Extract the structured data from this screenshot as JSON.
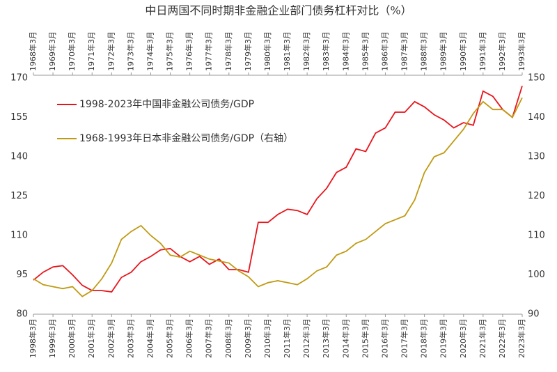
{
  "chart_data": {
    "type": "line",
    "title": "中日两国不同时期非金融企业部门债务杠杆对比（%）",
    "x": [
      1998,
      1998.5,
      1999,
      1999.5,
      2000,
      2000.5,
      2001,
      2001.5,
      2002,
      2002.5,
      2003,
      2003.5,
      2004,
      2004.5,
      2005,
      2005.5,
      2006,
      2006.5,
      2007,
      2007.5,
      2008,
      2008.5,
      2009,
      2009.5,
      2010,
      2010.5,
      2011,
      2011.5,
      2012,
      2012.5,
      2013,
      2013.5,
      2014,
      2014.5,
      2015,
      2015.5,
      2016,
      2016.5,
      2017,
      2017.5,
      2018,
      2018.5,
      2019,
      2019.5,
      2020,
      2020.5,
      2021,
      2021.5,
      2022,
      2022.5,
      2023
    ],
    "series": [
      {
        "name": "1998-2023年中国非金融公司债务/GDP",
        "color": "#e8141b",
        "values": [
          93,
          96,
          98,
          98.5,
          95,
          91,
          89,
          89,
          88.5,
          94,
          96,
          100,
          102,
          104.5,
          105,
          102,
          100,
          102,
          99,
          101,
          97,
          97,
          96,
          115,
          115,
          118,
          120,
          119.5,
          118,
          124,
          128,
          134,
          136,
          143,
          142,
          149,
          151,
          157,
          157,
          161,
          159,
          156,
          154,
          151,
          153,
          152,
          165,
          163,
          158,
          155,
          167
        ]
      },
      {
        "name": "1968-1993年日本非金融公司债务/GDP（右轴）",
        "color": "#c09a12",
        "axis": "y2",
        "values": [
          99,
          97.5,
          97,
          96.5,
          97,
          94.5,
          96,
          99,
          103,
          109,
          111,
          112.5,
          110,
          108,
          105,
          104.5,
          106,
          105,
          104,
          103.5,
          103,
          101,
          99.5,
          97,
          98,
          98.5,
          98,
          97.5,
          99,
          101,
          102,
          105,
          106,
          108,
          109,
          111,
          113,
          114,
          115,
          119,
          126,
          130,
          131,
          134,
          137,
          141,
          144,
          142,
          142,
          140,
          145
        ]
      }
    ],
    "xlim": [
      1998,
      2023
    ],
    "xticks": [
      {
        "value": 1998,
        "label": "1998年3月"
      },
      {
        "value": 1999,
        "label": "1999年3月"
      },
      {
        "value": 2000,
        "label": "2000年3月"
      },
      {
        "value": 2001,
        "label": "2001年3月"
      },
      {
        "value": 2002,
        "label": "2002年3月"
      },
      {
        "value": 2003,
        "label": "2003年3月"
      },
      {
        "value": 2004,
        "label": "2004年3月"
      },
      {
        "value": 2005,
        "label": "2005年3月"
      },
      {
        "value": 2006,
        "label": "2006年3月"
      },
      {
        "value": 2007,
        "label": "2007年3月"
      },
      {
        "value": 2008,
        "label": "2008年3月"
      },
      {
        "value": 2009,
        "label": "2009年3月"
      },
      {
        "value": 2010,
        "label": "2010年3月"
      },
      {
        "value": 2011,
        "label": "2011年3月"
      },
      {
        "value": 2012,
        "label": "2012年3月"
      },
      {
        "value": 2013,
        "label": "2013年3月"
      },
      {
        "value": 2014,
        "label": "2014年3月"
      },
      {
        "value": 2015,
        "label": "2015年3月"
      },
      {
        "value": 2016,
        "label": "2016年3月"
      },
      {
        "value": 2017,
        "label": "2017年3月"
      },
      {
        "value": 2018,
        "label": "2018年3月"
      },
      {
        "value": 2019,
        "label": "2019年3月"
      },
      {
        "value": 2020,
        "label": "2020年3月"
      },
      {
        "value": 2021,
        "label": "2021年3月"
      },
      {
        "value": 2022,
        "label": "2022年3月"
      },
      {
        "value": 2023,
        "label": "2023年3月"
      }
    ],
    "x2ticks": [
      {
        "value": 1998,
        "label": "1968年3月"
      },
      {
        "value": 1999,
        "label": "1969年3月"
      },
      {
        "value": 2000,
        "label": "1970年3月"
      },
      {
        "value": 2001,
        "label": "1971年3月"
      },
      {
        "value": 2002,
        "label": "1972年3月"
      },
      {
        "value": 2003,
        "label": "1973年3月"
      },
      {
        "value": 2004,
        "label": "1974年3月"
      },
      {
        "value": 2005,
        "label": "1975年3月"
      },
      {
        "value": 2006,
        "label": "1976年3月"
      },
      {
        "value": 2007,
        "label": "1977年3月"
      },
      {
        "value": 2008,
        "label": "1978年3月"
      },
      {
        "value": 2009,
        "label": "1979年3月"
      },
      {
        "value": 2010,
        "label": "1980年3月"
      },
      {
        "value": 2011,
        "label": "1981年3月"
      },
      {
        "value": 2012,
        "label": "1982年3月"
      },
      {
        "value": 2013,
        "label": "1983年3月"
      },
      {
        "value": 2014,
        "label": "1984年3月"
      },
      {
        "value": 2015,
        "label": "1985年3月"
      },
      {
        "value": 2016,
        "label": "1986年3月"
      },
      {
        "value": 2017,
        "label": "1987年3月"
      },
      {
        "value": 2018,
        "label": "1988年3月"
      },
      {
        "value": 2019,
        "label": "1989年3月"
      },
      {
        "value": 2020,
        "label": "1990年3月"
      },
      {
        "value": 2021,
        "label": "1991年3月"
      },
      {
        "value": 2022,
        "label": "1992年3月"
      },
      {
        "value": 2023,
        "label": "1993年3月"
      }
    ],
    "ylim": [
      80,
      170
    ],
    "yticks": [
      80,
      95,
      110,
      125,
      140,
      155,
      170
    ],
    "y2lim": [
      90,
      150
    ],
    "y2ticks": [
      90,
      100,
      110,
      120,
      130,
      140,
      150
    ]
  }
}
